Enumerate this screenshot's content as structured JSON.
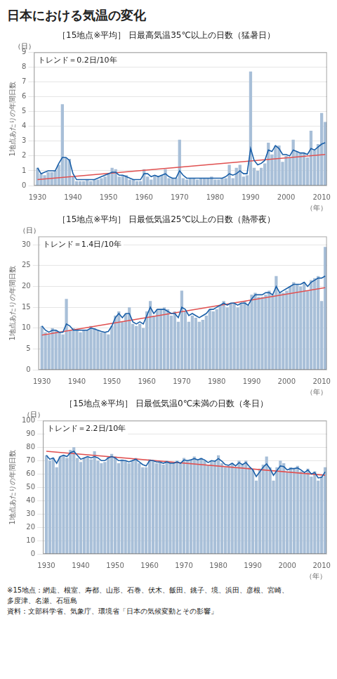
{
  "title": "日本における気温の変化",
  "footnotes": [
    "※15地点：網走、根室、寿都、山形、石巻、伏木、飯田、銚子、境、浜田、彦根、宮崎、",
    "多度津、名瀬、石垣島",
    "資料：文部科学省、気象庁、環境省「日本の気候変動とその影響」"
  ],
  "chart_data": [
    {
      "type": "bar",
      "title": "［15地点※平均］ 日最高気温35℃以上の日数（猛暑日）",
      "ylabel": "1地点あたりの年間日数",
      "xlabel": "（年）",
      "annotations": [
        "トレンド＝0.2日/10年",
        "（日）"
      ],
      "x": [
        1930,
        1931,
        1932,
        1933,
        1934,
        1935,
        1936,
        1937,
        1938,
        1939,
        1940,
        1941,
        1942,
        1943,
        1944,
        1945,
        1946,
        1947,
        1948,
        1949,
        1950,
        1951,
        1952,
        1953,
        1954,
        1955,
        1956,
        1957,
        1958,
        1959,
        1960,
        1961,
        1962,
        1963,
        1964,
        1965,
        1966,
        1967,
        1968,
        1969,
        1970,
        1971,
        1972,
        1973,
        1974,
        1975,
        1976,
        1977,
        1978,
        1979,
        1980,
        1981,
        1982,
        1983,
        1984,
        1985,
        1986,
        1987,
        1988,
        1989,
        1990,
        1991,
        1992,
        1993,
        1994,
        1995,
        1996,
        1997,
        1998,
        1999,
        2000,
        2001,
        2002,
        2003,
        2004,
        2005,
        2006,
        2007,
        2008,
        2009,
        2010,
        2011
      ],
      "xlim": [
        1929,
        2011.5
      ],
      "xticks": [
        1930,
        1940,
        1950,
        1960,
        1970,
        1980,
        1990,
        2000,
        2010
      ],
      "ylim": [
        0,
        9
      ],
      "yticks": [
        0,
        1,
        2,
        3,
        4,
        5,
        6,
        7,
        8,
        9
      ],
      "grid": "y",
      "series": [
        {
          "type": "bar",
          "color": "#a8bfd8",
          "values": [
            1.2,
            0.8,
            0.7,
            0.9,
            0.9,
            1.0,
            1.4,
            5.5,
            1.9,
            1.8,
            0.6,
            0.3,
            0.3,
            0.3,
            0.4,
            0.3,
            0.4,
            0.4,
            0.5,
            0.6,
            0.8,
            1.2,
            1.1,
            0.6,
            0.7,
            0.7,
            0.4,
            0.4,
            0.3,
            0.3,
            1.1,
            0.6,
            0.4,
            0.7,
            0.6,
            0.7,
            1.1,
            0.5,
            0.5,
            0.5,
            3.1,
            0.5,
            0.4,
            0.5,
            0.5,
            0.4,
            0.5,
            0.5,
            0.5,
            0.6,
            0.4,
            0.4,
            0.5,
            0.5,
            1.4,
            0.5,
            1.2,
            1.4,
            0.6,
            0.7,
            7.7,
            1.2,
            1.0,
            1.2,
            1.5,
            2.9,
            2.1,
            2.7,
            2.7,
            1.6,
            2.0,
            1.9,
            3.1,
            2.3,
            2.2,
            2.2,
            1.9,
            3.7,
            2.4,
            2.8,
            4.9,
            4.3
          ]
        },
        {
          "type": "line",
          "color": "#e05050",
          "x": [
            1930,
            2011
          ],
          "values": [
            0.4,
            2.1
          ]
        },
        {
          "type": "line",
          "color": "#1a5fa8",
          "values": [
            1.2,
            0.8,
            0.9,
            1.0,
            1.0,
            1.0,
            1.5,
            1.9,
            1.9,
            1.7,
            0.8,
            0.4,
            0.4,
            0.4,
            0.4,
            0.4,
            0.4,
            0.5,
            0.6,
            0.7,
            0.8,
            0.9,
            0.9,
            0.7,
            0.7,
            0.6,
            0.5,
            0.4,
            0.4,
            0.4,
            0.8,
            0.8,
            0.6,
            0.7,
            0.6,
            0.7,
            0.8,
            0.6,
            0.5,
            0.5,
            1.0,
            0.7,
            0.5,
            0.5,
            0.5,
            0.5,
            0.5,
            0.5,
            0.5,
            0.5,
            0.5,
            0.5,
            0.5,
            0.6,
            0.8,
            0.7,
            0.8,
            1.0,
            0.8,
            0.8,
            2.5,
            1.7,
            1.4,
            1.5,
            1.7,
            2.4,
            2.3,
            2.7,
            2.5,
            2.1,
            2.1,
            2.0,
            2.4,
            2.3,
            2.2,
            2.2,
            2.1,
            2.5,
            2.4,
            2.6,
            2.8,
            2.9
          ]
        }
      ]
    },
    {
      "type": "bar",
      "title": "［15地点※平均］ 日最低気温25℃以上の日数（熱帯夜）",
      "ylabel": "1地点あたりの年間日数",
      "xlabel": "（年）",
      "annotations": [
        "トレンド＝1.4日/10年",
        "（日）"
      ],
      "x": [
        1930,
        1931,
        1932,
        1933,
        1934,
        1935,
        1936,
        1937,
        1938,
        1939,
        1940,
        1941,
        1942,
        1943,
        1944,
        1945,
        1946,
        1947,
        1948,
        1949,
        1950,
        1951,
        1952,
        1953,
        1954,
        1955,
        1956,
        1957,
        1958,
        1959,
        1960,
        1961,
        1962,
        1963,
        1964,
        1965,
        1966,
        1967,
        1968,
        1969,
        1970,
        1971,
        1972,
        1973,
        1974,
        1975,
        1976,
        1977,
        1978,
        1979,
        1980,
        1981,
        1982,
        1983,
        1984,
        1985,
        1986,
        1987,
        1988,
        1989,
        1990,
        1991,
        1992,
        1993,
        1994,
        1995,
        1996,
        1997,
        1998,
        1999,
        2000,
        2001,
        2002,
        2003,
        2004,
        2005,
        2006,
        2007,
        2008,
        2009,
        2010,
        2011
      ],
      "xlim": [
        1929,
        2011.5
      ],
      "xticks": [
        1930,
        1940,
        1950,
        1960,
        1970,
        1980,
        1990,
        2000,
        2010
      ],
      "ylim": [
        0,
        32
      ],
      "yticks": [
        0,
        5,
        10,
        15,
        20,
        25,
        30
      ],
      "grid": "y",
      "series": [
        {
          "type": "bar",
          "color": "#a8bfd8",
          "values": [
            10.5,
            9.0,
            8.5,
            10.0,
            9.5,
            9.0,
            8.5,
            17.0,
            9.5,
            10.0,
            9.5,
            9.0,
            9.5,
            9.5,
            10.5,
            10.0,
            9.5,
            9.0,
            9.0,
            8.5,
            10.5,
            13.0,
            14.0,
            11.5,
            13.5,
            15.0,
            11.0,
            10.5,
            11.0,
            10.0,
            14.0,
            16.5,
            13.0,
            14.5,
            14.5,
            15.0,
            14.5,
            13.0,
            14.0,
            11.5,
            19.0,
            14.0,
            11.5,
            13.0,
            12.5,
            11.5,
            12.0,
            13.0,
            14.5,
            14.0,
            14.5,
            15.5,
            16.5,
            15.0,
            16.0,
            16.0,
            15.0,
            16.0,
            16.5,
            15.5,
            18.0,
            18.5,
            17.5,
            17.5,
            18.0,
            19.0,
            18.0,
            22.5,
            18.5,
            18.5,
            19.0,
            20.0,
            21.0,
            20.5,
            20.0,
            21.0,
            19.0,
            21.5,
            22.0,
            22.5,
            16.5,
            29.5
          ]
        },
        {
          "type": "line",
          "color": "#e05050",
          "x": [
            1930,
            2011
          ],
          "values": [
            8.3,
            19.7
          ]
        },
        {
          "type": "line",
          "color": "#1a5fa8",
          "values": [
            10.5,
            9.5,
            9.0,
            9.5,
            9.5,
            9.0,
            9.0,
            11.0,
            10.5,
            9.5,
            9.5,
            9.5,
            9.5,
            9.5,
            10.0,
            9.8,
            9.5,
            9.2,
            9.0,
            9.2,
            10.5,
            12.5,
            13.5,
            12.5,
            13.5,
            13.5,
            11.5,
            11.0,
            11.5,
            11.0,
            13.0,
            15.0,
            13.5,
            14.5,
            14.5,
            14.5,
            14.0,
            13.5,
            13.5,
            12.5,
            15.0,
            14.5,
            13.0,
            13.5,
            13.0,
            12.5,
            13.0,
            13.5,
            14.5,
            14.5,
            15.0,
            15.5,
            16.0,
            15.5,
            16.0,
            16.0,
            15.5,
            16.0,
            16.0,
            15.5,
            17.0,
            18.0,
            18.0,
            18.0,
            18.5,
            18.5,
            18.0,
            20.0,
            18.5,
            19.0,
            19.5,
            20.0,
            20.5,
            20.5,
            20.5,
            21.0,
            20.0,
            21.0,
            21.5,
            22.0,
            22.0,
            22.5
          ]
        }
      ]
    },
    {
      "type": "bar",
      "title": "［15地点※平均］ 日最低気温0℃未満の日数（冬日）",
      "ylabel": "1地点あたりの年間日数",
      "xlabel": "（年）",
      "annotations": [
        "トレンド＝2.2日/10年",
        "（日）"
      ],
      "x": [
        1930,
        1931,
        1932,
        1933,
        1934,
        1935,
        1936,
        1937,
        1938,
        1939,
        1940,
        1941,
        1942,
        1943,
        1944,
        1945,
        1946,
        1947,
        1948,
        1949,
        1950,
        1951,
        1952,
        1953,
        1954,
        1955,
        1956,
        1957,
        1958,
        1959,
        1960,
        1961,
        1962,
        1963,
        1964,
        1965,
        1966,
        1967,
        1968,
        1969,
        1970,
        1971,
        1972,
        1973,
        1974,
        1975,
        1976,
        1977,
        1978,
        1979,
        1980,
        1981,
        1982,
        1983,
        1984,
        1985,
        1986,
        1987,
        1988,
        1989,
        1990,
        1991,
        1992,
        1993,
        1994,
        1995,
        1996,
        1997,
        1998,
        1999,
        2000,
        2001,
        2002,
        2003,
        2004,
        2005,
        2006,
        2007,
        2008,
        2009,
        2010,
        2011
      ],
      "xlim": [
        1929,
        2011.5
      ],
      "xticks": [
        1930,
        1940,
        1950,
        1960,
        1970,
        1980,
        1990,
        2000,
        2010
      ],
      "ylim": [
        0,
        100
      ],
      "yticks": [
        0,
        10,
        20,
        30,
        40,
        50,
        60,
        70,
        80,
        90,
        100
      ],
      "grid": "y",
      "series": [
        {
          "type": "bar",
          "color": "#a8bfd8",
          "values": [
            74.0,
            70.0,
            72.0,
            65.0,
            73.0,
            74.0,
            72.0,
            78.0,
            80.0,
            72.0,
            69.0,
            72.0,
            73.0,
            71.0,
            77.0,
            70.0,
            68.0,
            69.0,
            73.0,
            75.0,
            73.0,
            68.0,
            71.0,
            70.0,
            68.0,
            70.0,
            72.0,
            68.0,
            65.0,
            65.0,
            71.0,
            70.0,
            68.0,
            69.0,
            67.0,
            70.0,
            68.0,
            68.0,
            70.0,
            68.0,
            72.0,
            70.0,
            71.0,
            73.0,
            70.0,
            72.0,
            70.0,
            67.0,
            70.0,
            70.0,
            74.0,
            68.0,
            65.0,
            66.0,
            68.0,
            65.0,
            70.0,
            67.0,
            70.0,
            65.0,
            63.0,
            55.0,
            64.0,
            67.0,
            73.0,
            65.0,
            55.0,
            65.0,
            70.0,
            68.0,
            62.0,
            65.0,
            64.0,
            66.0,
            62.0,
            60.0,
            64.0,
            58.0,
            62.0,
            55.0,
            58.0,
            65.0
          ]
        },
        {
          "type": "line",
          "color": "#e05050",
          "x": [
            1930,
            2011
          ],
          "values": [
            77.0,
            59.0
          ]
        },
        {
          "type": "line",
          "color": "#1a5fa8",
          "values": [
            74.0,
            71.0,
            72.0,
            68.0,
            73.0,
            74.0,
            73.0,
            76.0,
            77.0,
            74.0,
            71.0,
            72.0,
            73.0,
            72.0,
            73.0,
            72.0,
            70.0,
            70.0,
            72.0,
            73.0,
            72.0,
            70.0,
            70.0,
            70.0,
            69.0,
            70.0,
            71.0,
            69.0,
            67.0,
            66.0,
            70.0,
            70.0,
            69.0,
            69.0,
            68.0,
            69.0,
            68.0,
            68.0,
            69.0,
            68.0,
            70.5,
            70.0,
            70.5,
            71.5,
            70.5,
            71.5,
            70.5,
            68.5,
            70.0,
            69.5,
            71.5,
            69.5,
            67.0,
            66.5,
            68.0,
            66.0,
            68.5,
            67.0,
            68.5,
            65.5,
            63.0,
            58.0,
            61.5,
            65.0,
            67.5,
            64.0,
            59.0,
            62.5,
            66.0,
            65.5,
            63.0,
            64.0,
            64.0,
            64.5,
            63.0,
            61.0,
            63.0,
            60.0,
            61.0,
            57.0,
            57.5,
            61.5
          ]
        }
      ]
    }
  ]
}
